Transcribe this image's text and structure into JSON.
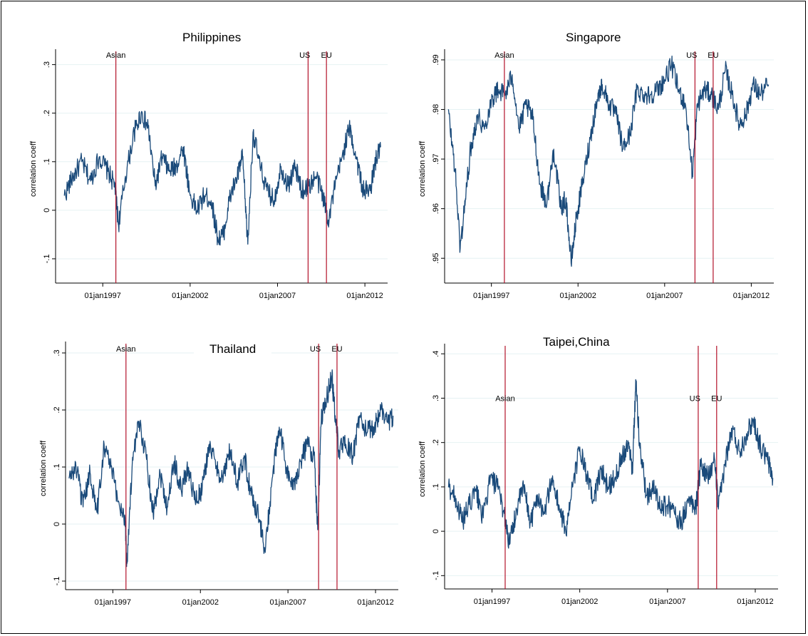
{
  "chart_data": [
    {
      "type": "line",
      "title": "Philippines",
      "ylabel": "correlation coeff",
      "xlabel": "",
      "xlim": [
        1994.3,
        2013.3
      ],
      "ylim": [
        -0.15,
        0.32
      ],
      "yticks": [
        -0.1,
        0,
        0.1,
        0.2,
        0.3
      ],
      "ytick_labels": [
        "-.1",
        "0",
        ".1",
        ".2",
        ".3"
      ],
      "xticks": [
        1997,
        2002,
        2007,
        2012
      ],
      "xtick_labels": [
        "01jan1997",
        "01jan2002",
        "01jan2007",
        "01jan2012"
      ],
      "events": [
        {
          "label": "Asian",
          "x": 1997.75
        },
        {
          "label": "US",
          "x": 2008.75
        },
        {
          "label": "EU",
          "x": 2009.8
        }
      ],
      "series": [
        {
          "x": [
            1994.8,
            1995.3,
            1995.8,
            1996.3,
            1996.8,
            1997.3,
            1997.7,
            1997.9,
            1998.3,
            1998.8,
            1999.2,
            1999.6,
            2000.0,
            2000.4,
            2000.8,
            2001.2,
            2001.6,
            2002.0,
            2002.4,
            2002.8,
            2003.2,
            2003.6,
            2003.9,
            2004.3,
            2004.7,
            2005.0,
            2005.3,
            2005.6,
            2006.0,
            2006.4,
            2006.8,
            2007.2,
            2007.6,
            2008.0,
            2008.4,
            2008.8,
            2009.2,
            2009.6,
            2009.9,
            2010.3,
            2010.7,
            2011.1,
            2011.5,
            2011.9,
            2012.3,
            2012.6,
            2012.9
          ],
          "y": [
            0.03,
            0.07,
            0.1,
            0.06,
            0.11,
            0.08,
            0.05,
            -0.03,
            0.07,
            0.16,
            0.2,
            0.17,
            0.05,
            0.11,
            0.08,
            0.09,
            0.13,
            0.03,
            0.0,
            0.03,
            0.02,
            -0.06,
            -0.05,
            0.03,
            0.07,
            0.11,
            -0.07,
            0.16,
            0.09,
            0.04,
            0.02,
            0.09,
            0.05,
            0.09,
            0.04,
            0.05,
            0.07,
            0.03,
            -0.02,
            0.05,
            0.11,
            0.17,
            0.11,
            0.04,
            0.04,
            0.1,
            0.13
          ]
        }
      ]
    },
    {
      "type": "line",
      "title": "Singapore",
      "ylabel": "correlation coeff",
      "xlabel": "",
      "xlim": [
        1994.3,
        2013.3
      ],
      "ylim": [
        0.945,
        0.991
      ],
      "yticks": [
        0.95,
        0.96,
        0.97,
        0.98,
        0.99
      ],
      "ytick_labels": [
        ".95",
        ".96",
        ".97",
        ".98",
        ".99"
      ],
      "xticks": [
        1997,
        2002,
        2007,
        2012
      ],
      "xtick_labels": [
        "01jan1997",
        "01jan2002",
        "01jan2007",
        "01jan2012"
      ],
      "events": [
        {
          "label": "Asian",
          "x": 1997.75
        },
        {
          "label": "US",
          "x": 2008.75
        },
        {
          "label": "EU",
          "x": 2009.8
        }
      ],
      "series": [
        {
          "x": [
            1994.5,
            1994.9,
            1995.2,
            1995.5,
            1995.8,
            1996.2,
            1996.6,
            1997.0,
            1997.4,
            1997.8,
            1998.2,
            1998.6,
            1999.0,
            1999.4,
            1999.8,
            2000.2,
            2000.6,
            2001.0,
            2001.3,
            2001.6,
            2001.9,
            2002.3,
            2002.7,
            2003.1,
            2003.4,
            2003.8,
            2004.2,
            2004.6,
            2005.0,
            2005.4,
            2005.8,
            2006.2,
            2006.6,
            2007.0,
            2007.4,
            2007.8,
            2008.2,
            2008.6,
            2008.9,
            2009.3,
            2009.7,
            2010.1,
            2010.5,
            2010.9,
            2011.3,
            2011.7,
            2012.1,
            2012.5,
            2013.0
          ],
          "y": [
            0.98,
            0.968,
            0.952,
            0.962,
            0.972,
            0.979,
            0.976,
            0.982,
            0.984,
            0.983,
            0.987,
            0.976,
            0.981,
            0.978,
            0.965,
            0.961,
            0.972,
            0.96,
            0.962,
            0.949,
            0.958,
            0.966,
            0.974,
            0.982,
            0.985,
            0.981,
            0.979,
            0.972,
            0.975,
            0.984,
            0.983,
            0.983,
            0.984,
            0.986,
            0.989,
            0.984,
            0.981,
            0.967,
            0.981,
            0.984,
            0.983,
            0.98,
            0.988,
            0.983,
            0.977,
            0.979,
            0.985,
            0.983,
            0.985
          ]
        }
      ]
    },
    {
      "type": "line",
      "title": "Thailand",
      "ylabel": "correlation coeff",
      "xlabel": "",
      "xlim": [
        1994.3,
        2013.3
      ],
      "ylim": [
        -0.115,
        0.31
      ],
      "yticks": [
        -0.1,
        0,
        0.1,
        0.2,
        0.3
      ],
      "ytick_labels": [
        "-.1",
        "0",
        ".1",
        ".2",
        ".3"
      ],
      "xticks": [
        1997,
        2002,
        2007,
        2012
      ],
      "xtick_labels": [
        "01jan1997",
        "01jan2002",
        "01jan2007",
        "01jan2012"
      ],
      "events": [
        {
          "label": "Asian",
          "x": 1997.75
        },
        {
          "label": "US",
          "x": 2008.75
        },
        {
          "label": "EU",
          "x": 2009.8
        }
      ],
      "series": [
        {
          "x": [
            1994.5,
            1994.9,
            1995.3,
            1995.7,
            1996.1,
            1996.5,
            1996.9,
            1997.3,
            1997.7,
            1997.8,
            1998.1,
            1998.5,
            1998.9,
            1999.3,
            1999.7,
            2000.1,
            2000.5,
            2000.9,
            2001.3,
            2001.7,
            2002.1,
            2002.5,
            2002.9,
            2003.3,
            2003.7,
            2004.1,
            2004.5,
            2004.9,
            2005.3,
            2005.7,
            2006.1,
            2006.5,
            2006.9,
            2007.3,
            2007.7,
            2008.1,
            2008.5,
            2008.7,
            2008.9,
            2009.2,
            2009.5,
            2009.7,
            2009.9,
            2010.3,
            2010.7,
            2011.1,
            2011.5,
            2011.9,
            2012.3,
            2012.7,
            2013.0
          ],
          "y": [
            0.08,
            0.1,
            0.03,
            0.09,
            0.02,
            0.14,
            0.1,
            0.04,
            0.01,
            -0.07,
            0.1,
            0.18,
            0.12,
            0.02,
            0.09,
            0.03,
            0.11,
            0.06,
            0.1,
            0.04,
            0.06,
            0.14,
            0.1,
            0.08,
            0.13,
            0.07,
            0.12,
            0.05,
            0.02,
            -0.05,
            0.08,
            0.17,
            0.1,
            0.06,
            0.11,
            0.14,
            0.12,
            -0.01,
            0.18,
            0.22,
            0.26,
            0.19,
            0.13,
            0.14,
            0.12,
            0.19,
            0.16,
            0.17,
            0.2,
            0.18,
            0.19
          ]
        }
      ]
    },
    {
      "type": "line",
      "title": "Taipei,China",
      "ylabel": "correlation coeff",
      "xlabel": "",
      "xlim": [
        1994.3,
        2013.3
      ],
      "ylim": [
        -0.13,
        0.41
      ],
      "yticks": [
        -0.1,
        0,
        0.1,
        0.2,
        0.3,
        0.4
      ],
      "ytick_labels": [
        "-.1",
        "0",
        ".1",
        ".2",
        ".3",
        ".4"
      ],
      "xticks": [
        1997,
        2002,
        2007,
        2012
      ],
      "xtick_labels": [
        "01jan1997",
        "01jan2002",
        "01jan2007",
        "01jan2012"
      ],
      "events": [
        {
          "label": "Asian",
          "x": 1997.75
        },
        {
          "label": "US",
          "x": 2008.75
        },
        {
          "label": "EU",
          "x": 2009.8
        }
      ],
      "series": [
        {
          "x": [
            1994.5,
            1994.9,
            1995.3,
            1995.7,
            1996.1,
            1996.5,
            1996.9,
            1997.3,
            1997.7,
            1998.0,
            1998.4,
            1998.8,
            1999.2,
            1999.6,
            2000.0,
            2000.4,
            2000.8,
            2001.2,
            2001.6,
            2002.0,
            2002.4,
            2002.8,
            2003.2,
            2003.6,
            2004.0,
            2004.4,
            2004.8,
            2005.0,
            2005.2,
            2005.4,
            2005.8,
            2006.2,
            2006.6,
            2007.0,
            2007.4,
            2007.8,
            2008.2,
            2008.6,
            2008.9,
            2009.3,
            2009.7,
            2009.9,
            2010.3,
            2010.7,
            2011.1,
            2011.5,
            2011.9,
            2012.3,
            2012.7,
            2013.0
          ],
          "y": [
            0.1,
            0.08,
            0.02,
            0.06,
            0.09,
            0.03,
            0.12,
            0.1,
            0.04,
            -0.03,
            0.05,
            0.1,
            0.02,
            0.08,
            0.04,
            0.12,
            0.06,
            0.0,
            0.1,
            0.19,
            0.12,
            0.07,
            0.14,
            0.1,
            0.12,
            0.17,
            0.2,
            0.14,
            0.34,
            0.2,
            0.08,
            0.1,
            0.05,
            0.06,
            0.04,
            0.02,
            0.07,
            0.05,
            0.15,
            0.12,
            0.16,
            0.05,
            0.16,
            0.23,
            0.18,
            0.22,
            0.25,
            0.19,
            0.16,
            0.12
          ]
        }
      ]
    }
  ]
}
